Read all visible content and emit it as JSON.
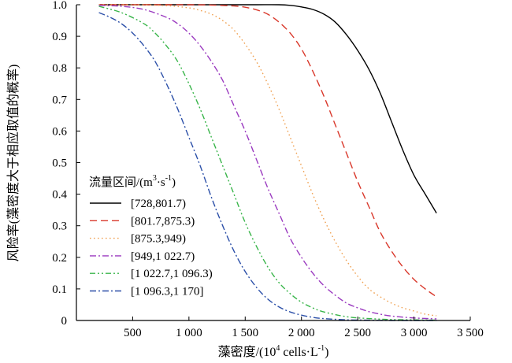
{
  "chart_data": {
    "type": "line",
    "title": "",
    "xlabel_main": "藻密度/(10",
    "xlabel_sup": "4",
    "xlabel_mid": " cells·L",
    "xlabel_sup2": "-1",
    "xlabel_end": ")",
    "ylabel": "风险率(藻密度大于相应取值的概率)",
    "xlim": [
      0,
      3500
    ],
    "ylim": [
      0,
      1.0
    ],
    "xticks": [
      {
        "value": 500,
        "label": "500"
      },
      {
        "value": 1000,
        "label": "1 000"
      },
      {
        "value": 1500,
        "label": "1 500"
      },
      {
        "value": 2000,
        "label": "2 000"
      },
      {
        "value": 2500,
        "label": "2 500"
      },
      {
        "value": 3000,
        "label": "3 000"
      },
      {
        "value": 3500,
        "label": "3 500"
      }
    ],
    "yticks": [
      {
        "value": 0,
        "label": "0"
      },
      {
        "value": 0.1,
        "label": "0.1"
      },
      {
        "value": 0.2,
        "label": "0.2"
      },
      {
        "value": 0.3,
        "label": "0.3"
      },
      {
        "value": 0.4,
        "label": "0.4"
      },
      {
        "value": 0.5,
        "label": "0.5"
      },
      {
        "value": 0.6,
        "label": "0.6"
      },
      {
        "value": 0.7,
        "label": "0.7"
      },
      {
        "value": 0.8,
        "label": "0.8"
      },
      {
        "value": 0.9,
        "label": "0.9"
      },
      {
        "value": 1.0,
        "label": "1.0"
      }
    ],
    "legend": {
      "title_main": "流量区间/(m",
      "title_sup": "3",
      "title_mid": "·s",
      "title_sup2": "-1",
      "title_end": ")",
      "placement": "bottom-left"
    },
    "grid": false,
    "series": [
      {
        "name": "[728,801.7)",
        "color": "#000000",
        "dash": "solid",
        "x": [
          200,
          500,
          800,
          1000,
          1200,
          1400,
          1600,
          1800,
          1900,
          2000,
          2100,
          2200,
          2300,
          2400,
          2500,
          2600,
          2700,
          2800,
          2900,
          3000,
          3100,
          3200
        ],
        "y": [
          1.0,
          1.0,
          1.0,
          1.0,
          1.0,
          1.0,
          1.0,
          1.0,
          0.998,
          0.993,
          0.985,
          0.97,
          0.945,
          0.905,
          0.855,
          0.795,
          0.72,
          0.63,
          0.54,
          0.46,
          0.4,
          0.34
        ]
      },
      {
        "name": "[801.7,875.3)",
        "color": "#d9382b",
        "dash": "long-dash",
        "x": [
          200,
          500,
          800,
          1000,
          1200,
          1400,
          1500,
          1600,
          1700,
          1800,
          1900,
          2000,
          2100,
          2200,
          2300,
          2400,
          2500,
          2600,
          2700,
          2800,
          2900,
          3000,
          3100,
          3200
        ],
        "y": [
          1.0,
          1.0,
          1.0,
          1.0,
          0.999,
          0.996,
          0.992,
          0.984,
          0.97,
          0.945,
          0.91,
          0.86,
          0.79,
          0.71,
          0.62,
          0.53,
          0.44,
          0.36,
          0.28,
          0.22,
          0.17,
          0.13,
          0.1,
          0.075
        ]
      },
      {
        "name": "[875.3,949)",
        "color": "#f0a050",
        "dash": "dotted",
        "x": [
          200,
          500,
          800,
          1000,
          1100,
          1200,
          1300,
          1400,
          1500,
          1600,
          1700,
          1800,
          1900,
          2000,
          2100,
          2200,
          2300,
          2400,
          2500,
          2600,
          2700,
          2800,
          2900,
          3000,
          3100,
          3200
        ],
        "y": [
          1.0,
          1.0,
          0.997,
          0.99,
          0.982,
          0.97,
          0.95,
          0.92,
          0.875,
          0.82,
          0.75,
          0.67,
          0.58,
          0.49,
          0.4,
          0.32,
          0.25,
          0.19,
          0.14,
          0.1,
          0.075,
          0.055,
          0.04,
          0.03,
          0.02,
          0.015
        ]
      },
      {
        "name": "[949,1 022.7)",
        "color": "#9b3bc0",
        "dash": "dash-dot",
        "x": [
          200,
          400,
          600,
          800,
          900,
          1000,
          1100,
          1200,
          1300,
          1400,
          1500,
          1600,
          1700,
          1800,
          1900,
          2000,
          2100,
          2200,
          2300,
          2400,
          2500,
          2600,
          2700,
          2800,
          3000,
          3200
        ],
        "y": [
          0.998,
          0.995,
          0.985,
          0.96,
          0.94,
          0.91,
          0.87,
          0.82,
          0.76,
          0.68,
          0.6,
          0.51,
          0.42,
          0.34,
          0.26,
          0.2,
          0.15,
          0.11,
          0.08,
          0.055,
          0.04,
          0.028,
          0.02,
          0.014,
          0.008,
          0.005
        ]
      },
      {
        "name": "[1 022.7,1 096.3)",
        "color": "#39b54a",
        "dash": "dash-dot-dot",
        "x": [
          200,
          400,
          600,
          700,
          800,
          900,
          1000,
          1100,
          1200,
          1300,
          1400,
          1500,
          1600,
          1700,
          1800,
          1900,
          2000,
          2100,
          2200,
          2400,
          2600,
          2800,
          3000,
          3200
        ],
        "y": [
          0.995,
          0.975,
          0.94,
          0.91,
          0.87,
          0.82,
          0.75,
          0.67,
          0.58,
          0.49,
          0.4,
          0.31,
          0.235,
          0.17,
          0.12,
          0.085,
          0.058,
          0.04,
          0.027,
          0.012,
          0.006,
          0.003,
          0.002,
          0.001
        ]
      },
      {
        "name": "[1 096.3,1 170]",
        "color": "#2b4fa8",
        "dash": "dash-dot",
        "x": [
          200,
          300,
          400,
          500,
          600,
          700,
          800,
          900,
          1000,
          1100,
          1200,
          1300,
          1400,
          1500,
          1600,
          1700,
          1800,
          1900,
          2000,
          2100,
          2200,
          2400,
          2600,
          2800,
          3000,
          3200
        ],
        "y": [
          0.975,
          0.96,
          0.94,
          0.91,
          0.87,
          0.82,
          0.75,
          0.67,
          0.58,
          0.49,
          0.39,
          0.3,
          0.22,
          0.155,
          0.105,
          0.068,
          0.043,
          0.027,
          0.017,
          0.01,
          0.006,
          0.002,
          0.001,
          0.0,
          0.0,
          0.0
        ]
      }
    ]
  }
}
